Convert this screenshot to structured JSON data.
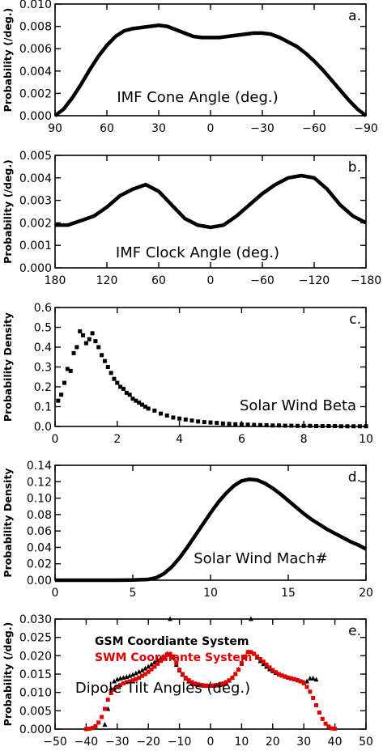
{
  "chart_data": [
    {
      "type": "line",
      "panel": "a.",
      "annotation": "IMF Cone Angle (deg.)",
      "ylabel": "Probability (/deg.)",
      "xlim": [
        90,
        -90
      ],
      "ylim": [
        0,
        0.01
      ],
      "xticks": [
        90,
        60,
        30,
        0,
        -30,
        -60,
        -90
      ],
      "xtick_labels": [
        "90",
        "60",
        "30",
        "0",
        "−30",
        "−60",
        "−90"
      ],
      "yticks": [
        0,
        0.002,
        0.004,
        0.006,
        0.008,
        0.01
      ],
      "ytick_labels": [
        "0.000",
        "0.002",
        "0.004",
        "0.006",
        "0.008",
        "0.010"
      ],
      "series": [
        {
          "x": [
            90,
            85,
            80,
            75,
            70,
            65,
            60,
            55,
            50,
            45,
            40,
            35,
            30,
            25,
            20,
            15,
            10,
            5,
            0,
            -5,
            -10,
            -15,
            -20,
            -25,
            -30,
            -35,
            -40,
            -45,
            -50,
            -55,
            -60,
            -65,
            -70,
            -75,
            -80,
            -85,
            -90
          ],
          "y": [
            0.0,
            0.0006,
            0.0016,
            0.0028,
            0.0041,
            0.0053,
            0.0063,
            0.0071,
            0.0076,
            0.0078,
            0.0079,
            0.008,
            0.0081,
            0.008,
            0.0077,
            0.0074,
            0.0071,
            0.007,
            0.007,
            0.007,
            0.0071,
            0.0072,
            0.0073,
            0.0074,
            0.0074,
            0.0073,
            0.007,
            0.0066,
            0.0062,
            0.0056,
            0.0049,
            0.0041,
            0.0032,
            0.0023,
            0.0014,
            0.0006,
            0.0
          ]
        }
      ]
    },
    {
      "type": "line",
      "panel": "b.",
      "annotation": "IMF Clock Angle (deg.)",
      "ylabel": "Probability (/deg.)",
      "xlim": [
        180,
        -180
      ],
      "ylim": [
        0,
        0.005
      ],
      "xticks": [
        180,
        120,
        60,
        0,
        -60,
        -120,
        -180
      ],
      "xtick_labels": [
        "180",
        "120",
        "60",
        "0",
        "−60",
        "−120",
        "−180"
      ],
      "yticks": [
        0,
        0.001,
        0.002,
        0.003,
        0.004,
        0.005
      ],
      "ytick_labels": [
        "0.000",
        "0.001",
        "0.002",
        "0.003",
        "0.004",
        "0.005"
      ],
      "series": [
        {
          "x": [
            180,
            165,
            150,
            135,
            120,
            105,
            90,
            75,
            60,
            45,
            30,
            15,
            0,
            -15,
            -30,
            -45,
            -60,
            -75,
            -90,
            -105,
            -120,
            -135,
            -150,
            -165,
            -180
          ],
          "y": [
            0.0019,
            0.0019,
            0.0021,
            0.0023,
            0.0027,
            0.0032,
            0.0035,
            0.0037,
            0.0034,
            0.0028,
            0.0022,
            0.0019,
            0.0018,
            0.0019,
            0.0023,
            0.0028,
            0.0033,
            0.0037,
            0.004,
            0.0041,
            0.004,
            0.0035,
            0.0028,
            0.0023,
            0.002
          ]
        }
      ]
    },
    {
      "type": "scatter",
      "panel": "c.",
      "annotation": "Solar Wind Beta",
      "ylabel": "Probability Density",
      "xlim": [
        0,
        10
      ],
      "ylim": [
        0,
        0.6
      ],
      "xticks": [
        0,
        2,
        4,
        6,
        8,
        10
      ],
      "xtick_labels": [
        "0",
        "2",
        "4",
        "6",
        "8",
        "10"
      ],
      "yticks": [
        0,
        0.1,
        0.2,
        0.3,
        0.4,
        0.5,
        0.6
      ],
      "ytick_labels": [
        "0.0",
        "0.1",
        "0.2",
        "0.3",
        "0.4",
        "0.5",
        "0.6"
      ],
      "series": [
        {
          "x": [
            0.1,
            0.2,
            0.3,
            0.4,
            0.5,
            0.6,
            0.7,
            0.8,
            0.9,
            1.0,
            1.1,
            1.2,
            1.3,
            1.4,
            1.5,
            1.6,
            1.7,
            1.8,
            1.9,
            2.0,
            2.1,
            2.2,
            2.3,
            2.4,
            2.5,
            2.6,
            2.7,
            2.8,
            2.9,
            3.0,
            3.2,
            3.4,
            3.6,
            3.8,
            4.0,
            4.2,
            4.4,
            4.6,
            4.8,
            5.0,
            5.2,
            5.4,
            5.6,
            5.8,
            6.0,
            6.2,
            6.4,
            6.6,
            6.8,
            7.0,
            7.2,
            7.4,
            7.6,
            7.8,
            8.0,
            8.2,
            8.4,
            8.6,
            8.8,
            9.0,
            9.2,
            9.4,
            9.6,
            9.8,
            10.0
          ],
          "y": [
            0.13,
            0.16,
            0.22,
            0.29,
            0.28,
            0.37,
            0.4,
            0.48,
            0.46,
            0.42,
            0.44,
            0.47,
            0.43,
            0.4,
            0.36,
            0.33,
            0.3,
            0.27,
            0.24,
            0.22,
            0.2,
            0.19,
            0.17,
            0.16,
            0.14,
            0.13,
            0.12,
            0.11,
            0.1,
            0.09,
            0.08,
            0.065,
            0.055,
            0.045,
            0.04,
            0.035,
            0.03,
            0.025,
            0.022,
            0.02,
            0.018,
            0.015,
            0.013,
            0.011,
            0.01,
            0.009,
            0.008,
            0.007,
            0.006,
            0.005,
            0.005,
            0.004,
            0.004,
            0.003,
            0.003,
            0.003,
            0.002,
            0.002,
            0.002,
            0.002,
            0.001,
            0.001,
            0.001,
            0.001,
            0.001
          ]
        }
      ]
    },
    {
      "type": "line",
      "panel": "d.",
      "annotation": "Solar Wind Mach#",
      "ylabel": "Probability Density",
      "xlim": [
        0,
        20
      ],
      "ylim": [
        0,
        0.14
      ],
      "xticks": [
        0,
        5,
        10,
        15,
        20
      ],
      "xtick_labels": [
        "0",
        "5",
        "10",
        "15",
        "20"
      ],
      "yticks": [
        0,
        0.02,
        0.04,
        0.06,
        0.08,
        0.1,
        0.12,
        0.14
      ],
      "ytick_labels": [
        "0.00",
        "0.02",
        "0.04",
        "0.06",
        "0.08",
        "0.10",
        "0.12",
        "0.14"
      ],
      "series": [
        {
          "x": [
            0,
            2,
            4,
            5,
            6,
            6.5,
            7,
            7.5,
            8,
            8.5,
            9,
            9.5,
            10,
            10.5,
            11,
            11.5,
            12,
            12.5,
            13,
            13.5,
            14,
            14.5,
            15,
            15.5,
            16,
            16.5,
            17,
            17.5,
            18,
            18.5,
            19,
            19.5,
            20
          ],
          "y": [
            0,
            0,
            0,
            0.0002,
            0.001,
            0.003,
            0.008,
            0.016,
            0.027,
            0.04,
            0.054,
            0.068,
            0.082,
            0.095,
            0.106,
            0.115,
            0.121,
            0.123,
            0.122,
            0.118,
            0.112,
            0.105,
            0.097,
            0.089,
            0.081,
            0.074,
            0.068,
            0.062,
            0.057,
            0.052,
            0.047,
            0.043,
            0.038
          ]
        }
      ]
    },
    {
      "type": "scatter",
      "panel": "e.",
      "annotation": "Dipole Tilt Angles (deg.)",
      "ylabel": "Probability (/deg.)",
      "xlim": [
        -50,
        50
      ],
      "ylim": [
        0,
        0.03
      ],
      "xticks": [
        -50,
        -40,
        -30,
        -20,
        -10,
        0,
        10,
        20,
        30,
        40,
        50
      ],
      "xtick_labels": [
        "−50",
        "−40",
        "−30",
        "−20",
        "−10",
        "0",
        "10",
        "20",
        "30",
        "40",
        "50"
      ],
      "yticks": [
        0,
        0.005,
        0.01,
        0.015,
        0.02,
        0.025,
        0.03
      ],
      "ytick_labels": [
        "0.000",
        "0.005",
        "0.010",
        "0.015",
        "0.020",
        "0.025",
        "0.030"
      ],
      "legend": [
        {
          "name": "GSM Coordiante System",
          "color": "#000000"
        },
        {
          "name": "SWM Coordiante System",
          "color": "#e00000"
        }
      ],
      "series": [
        {
          "name": "GSM Coordiante System",
          "color": "#000000",
          "marker": "triangle",
          "x": [
            -34,
            -33,
            -32,
            -31,
            -30,
            -29,
            -28,
            -27,
            -26,
            -25,
            -24,
            -23,
            -22,
            -21,
            -20,
            -19,
            -18,
            -17,
            -16,
            -15,
            -14,
            -13,
            -12,
            -11,
            -10,
            -9,
            -8,
            -7,
            -6,
            -5,
            -4,
            -3,
            -2,
            -1,
            0,
            1,
            2,
            3,
            4,
            5,
            6,
            7,
            8,
            9,
            10,
            11,
            12,
            13,
            14,
            15,
            16,
            17,
            18,
            19,
            20,
            21,
            22,
            23,
            24,
            25,
            26,
            27,
            28,
            29,
            30,
            31,
            32,
            33,
            34
          ],
          "y": [
            0.0012,
            0.0055,
            0.011,
            0.013,
            0.0135,
            0.0138,
            0.014,
            0.0142,
            0.0145,
            0.0148,
            0.0152,
            0.0156,
            0.016,
            0.0165,
            0.017,
            0.0176,
            0.0182,
            0.0188,
            0.0193,
            0.0198,
            0.0205,
            0.03,
            0.0195,
            0.0175,
            0.016,
            0.0148,
            0.0138,
            0.013,
            0.0125,
            0.0122,
            0.012,
            0.0119,
            0.0118,
            0.0118,
            0.0118,
            0.0118,
            0.0119,
            0.012,
            0.0122,
            0.0126,
            0.0132,
            0.014,
            0.015,
            0.0163,
            0.0178,
            0.0195,
            0.021,
            0.03,
            0.0205,
            0.0195,
            0.0185,
            0.0177,
            0.017,
            0.0163,
            0.0158,
            0.0153,
            0.0149,
            0.0146,
            0.0143,
            0.014,
            0.0138,
            0.0136,
            0.0133,
            0.013,
            0.0128,
            0.013,
            0.0138,
            0.0138,
            0.0135
          ]
        },
        {
          "name": "SWM Coordiante System",
          "color": "#e00000",
          "marker": "square",
          "x": [
            -40,
            -39,
            -38,
            -37,
            -36,
            -35,
            -34,
            -33,
            -32,
            -31,
            -30,
            -29,
            -28,
            -27,
            -26,
            -25,
            -24,
            -23,
            -22,
            -21,
            -20,
            -19,
            -18,
            -17,
            -16,
            -15,
            -14,
            -13,
            -12,
            -11,
            -10,
            -9,
            -8,
            -7,
            -6,
            -5,
            -4,
            -3,
            -2,
            -1,
            0,
            1,
            2,
            3,
            4,
            5,
            6,
            7,
            8,
            9,
            10,
            11,
            12,
            13,
            14,
            15,
            16,
            17,
            18,
            19,
            20,
            21,
            22,
            23,
            24,
            25,
            26,
            27,
            28,
            29,
            30,
            31,
            32,
            33,
            34,
            35,
            36,
            37,
            38,
            39,
            40
          ],
          "y": [
            0,
            0.0001,
            0.0003,
            0.0008,
            0.0018,
            0.0033,
            0.0055,
            0.008,
            0.0098,
            0.0108,
            0.0115,
            0.012,
            0.0125,
            0.0128,
            0.013,
            0.0133,
            0.0136,
            0.014,
            0.0145,
            0.015,
            0.0156,
            0.0163,
            0.017,
            0.0178,
            0.0186,
            0.0194,
            0.0202,
            0.0205,
            0.0198,
            0.018,
            0.0162,
            0.015,
            0.014,
            0.0133,
            0.0128,
            0.0124,
            0.0122,
            0.012,
            0.0119,
            0.0118,
            0.0118,
            0.0119,
            0.012,
            0.0122,
            0.0124,
            0.0128,
            0.0133,
            0.014,
            0.015,
            0.0162,
            0.018,
            0.0198,
            0.021,
            0.021,
            0.0205,
            0.0198,
            0.0191,
            0.0184,
            0.0176,
            0.0168,
            0.0161,
            0.0155,
            0.015,
            0.0146,
            0.0143,
            0.014,
            0.0138,
            0.0136,
            0.0133,
            0.013,
            0.0125,
            0.0115,
            0.0102,
            0.0085,
            0.0065,
            0.0045,
            0.0028,
            0.0015,
            0.0007,
            0.0002,
            0.0001
          ]
        }
      ]
    }
  ]
}
